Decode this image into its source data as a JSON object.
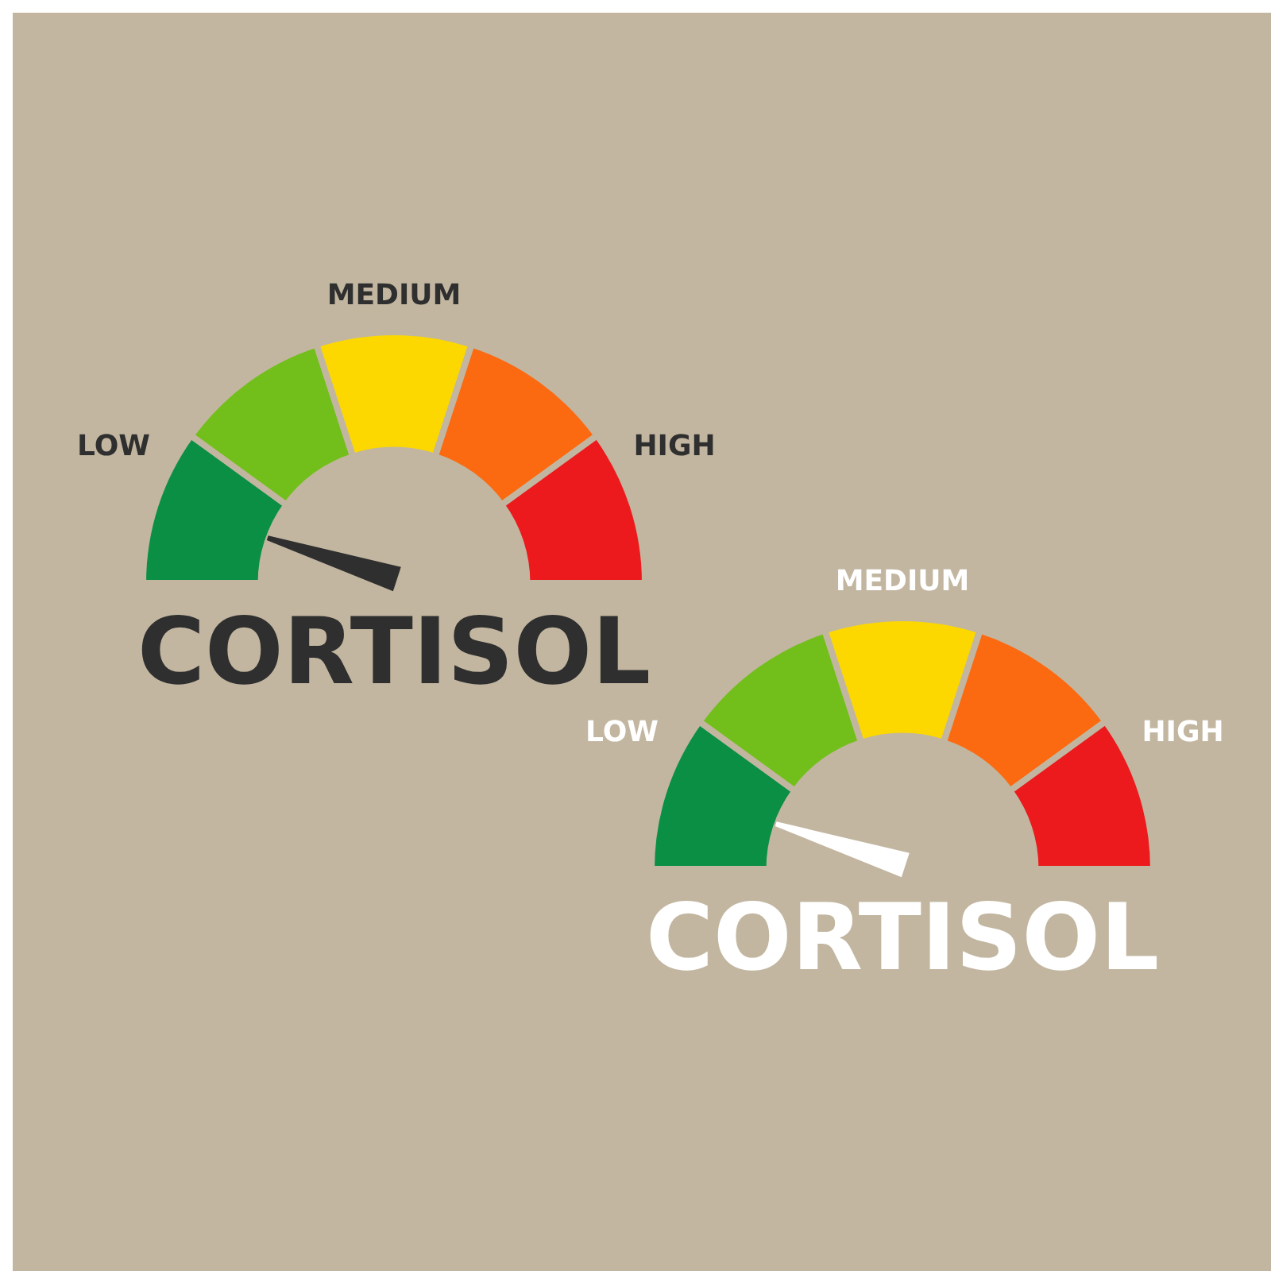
{
  "chart_data": [
    {
      "type": "donut",
      "title": "CORTISOL",
      "categories": [
        "LOW",
        null,
        "MEDIUM",
        null,
        "HIGH"
      ],
      "values": [
        20,
        20,
        20,
        20,
        20
      ],
      "colors": [
        "#0a8f45",
        "#72bf1b",
        "#fcd800",
        "#fb6a10",
        "#ec1a1c"
      ],
      "needle": "LOW",
      "legend": false
    },
    {
      "type": "donut",
      "title": "CORTISOL",
      "categories": [
        "LOW",
        null,
        "MEDIUM",
        null,
        "HIGH"
      ],
      "values": [
        20,
        20,
        20,
        20,
        20
      ],
      "colors": [
        "#0a8f45",
        "#72bf1b",
        "#fcd800",
        "#fb6a10",
        "#ec1a1c"
      ],
      "needle": "LOW",
      "legend": false
    }
  ]
}
